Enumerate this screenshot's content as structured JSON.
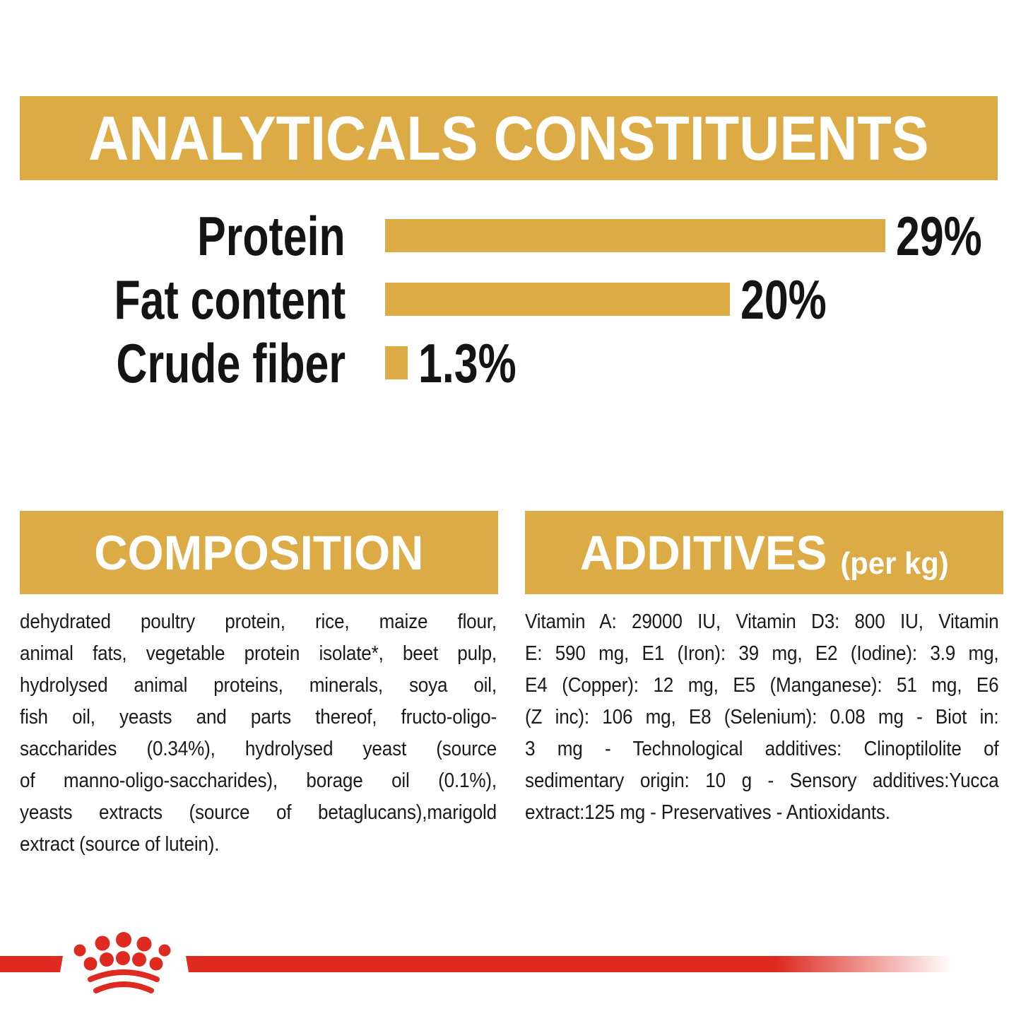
{
  "colors": {
    "gold": "#DDAB45",
    "red": "#DE2A20",
    "heading_text": "#FFFFFF",
    "body_text": "#1B1B1B"
  },
  "header": {
    "title": "ANALYTICALS CONSTITUENTS"
  },
  "chart_data": {
    "type": "bar",
    "orientation": "horizontal",
    "title": "ANALYTICALS CONSTITUENTS",
    "categories": [
      "Protein",
      "Fat content",
      "Crude fiber"
    ],
    "values": [
      29,
      20,
      1.3
    ],
    "value_labels": [
      "29%",
      "20%",
      "1.3%"
    ],
    "unit": "%",
    "xlim": [
      0,
      29
    ],
    "bar_color": "#DDAB45",
    "grid": false,
    "legend": false,
    "value_label_position": "right-of-bar"
  },
  "composition": {
    "title": "COMPOSITION",
    "lines": [
      "dehydrated poultry protein, rice, maize flour,",
      "animal fats, vegetable protein isolate*, beet pulp,",
      "hydrolysed animal proteins, minerals, soya oil,",
      "fish oil, yeasts and parts thereof, fructo-oligo-",
      "saccharides (0.34%), hydrolysed yeast (source",
      "of manno-oligo-saccharides), borage oil (0.1%),",
      "yeasts extracts (source of betaglucans),marigold",
      "extract (source of lutein)."
    ]
  },
  "additives": {
    "title": "ADDITIVES",
    "per": "(per kg)",
    "lines": [
      "Vitamin A: 29000 IU, Vitamin D3: 800 IU, Vitamin",
      "E: 590 mg, E1 (Iron): 39 mg, E2 (Iodine): 3.9 mg,",
      "E4 (Copper): 12 mg, E5 (Manganese): 51 mg, E6",
      "(Z inc): 106 mg, E8 (Selenium): 0.08 mg - Biot in:",
      "3 mg - Technological additives: Clinoptilolite of",
      "sedimentary origin: 10 g - Sensory additives:Yucca",
      "extract:125 mg - Preservatives - Antioxidants."
    ]
  },
  "footer": {
    "logo_icon": "royal-canin-crown-logo",
    "stripe_color": "#DE2A20"
  }
}
